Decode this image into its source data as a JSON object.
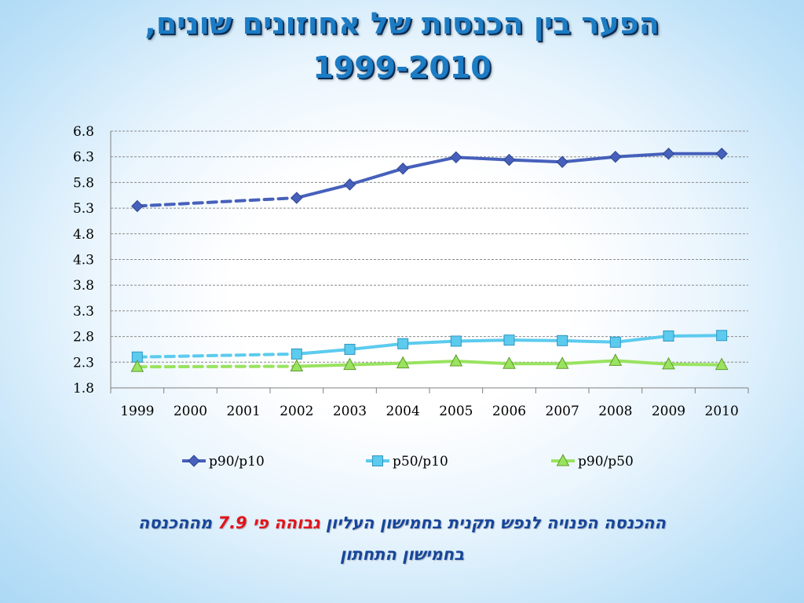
{
  "slide": {
    "title_line1": "הפער בין הכנסות של אחוזונים שונים,",
    "title_line2": "1999-2010",
    "footnote_a": "ההכנסה הפנויה לנפש תקנית בחמישון העליון ",
    "footnote_b": "גבוהה פי 7.9",
    "footnote_c": " מההכנסה",
    "footnote_line2": "בחמישון התחתון"
  },
  "chart_data": {
    "type": "line",
    "categories": [
      "1999",
      "2000",
      "2001",
      "2002",
      "2003",
      "2004",
      "2005",
      "2006",
      "2007",
      "2008",
      "2009",
      "2010"
    ],
    "ylim": [
      1.8,
      6.8
    ],
    "yticks": [
      "6.8",
      "6.3",
      "5.8",
      "5.3",
      "4.8",
      "4.3",
      "3.8",
      "3.3",
      "2.8",
      "2.3",
      "1.8"
    ],
    "grid": "horizontal dashed",
    "legend_position": "bottom",
    "note": "years 1999-2002 connected with a dashed line (no data for 2000-2001)",
    "series": [
      {
        "name": "p90/p10",
        "marker": "diamond",
        "color": "#4660bb",
        "values": [
          5.34,
          null,
          null,
          5.5,
          5.76,
          6.07,
          6.29,
          6.24,
          6.2,
          6.3,
          6.36,
          6.36
        ]
      },
      {
        "name": "p50/p10",
        "marker": "square",
        "color": "#5ccbee",
        "values": [
          2.4,
          null,
          null,
          2.46,
          2.55,
          2.66,
          2.71,
          2.73,
          2.72,
          2.69,
          2.81,
          2.82
        ]
      },
      {
        "name": "p90/p50",
        "marker": "triangle",
        "color": "#99e35f",
        "values": [
          2.21,
          null,
          null,
          2.22,
          2.25,
          2.28,
          2.32,
          2.27,
          2.27,
          2.33,
          2.26,
          2.25
        ]
      }
    ]
  }
}
